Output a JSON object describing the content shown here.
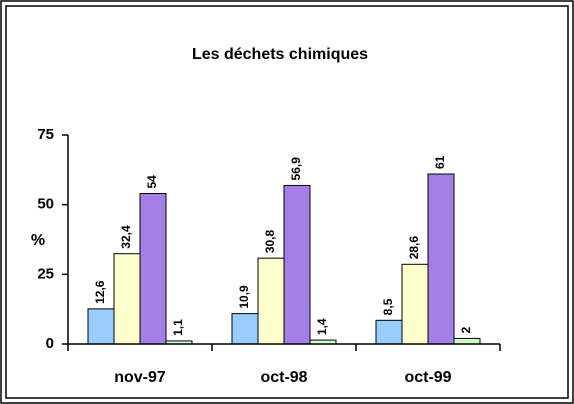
{
  "chart_data": {
    "type": "bar",
    "title": "Les déchets chimiques",
    "ylabel": "%",
    "categories": [
      "nov-97",
      "oct-98",
      "oct-99"
    ],
    "series": [
      {
        "color": "#99ccff",
        "values": [
          12.6,
          10.9,
          8.5
        ],
        "value_labels": [
          "12,6",
          "10,9",
          "8,5"
        ]
      },
      {
        "color": "#ffffcc",
        "values": [
          32.4,
          30.8,
          28.6
        ],
        "value_labels": [
          "32,4",
          "30,8",
          "28,6"
        ]
      },
      {
        "color": "#a47fe8",
        "values": [
          54,
          56.9,
          61
        ],
        "value_labels": [
          "54",
          "56,9",
          "61"
        ]
      },
      {
        "color": "#ccffcc",
        "values": [
          1.1,
          1.4,
          2
        ],
        "value_labels": [
          "1,1",
          "1,4",
          "2"
        ]
      }
    ],
    "ylim": [
      0,
      75
    ],
    "yticks": [
      0,
      25,
      50,
      75
    ],
    "grid": false
  }
}
